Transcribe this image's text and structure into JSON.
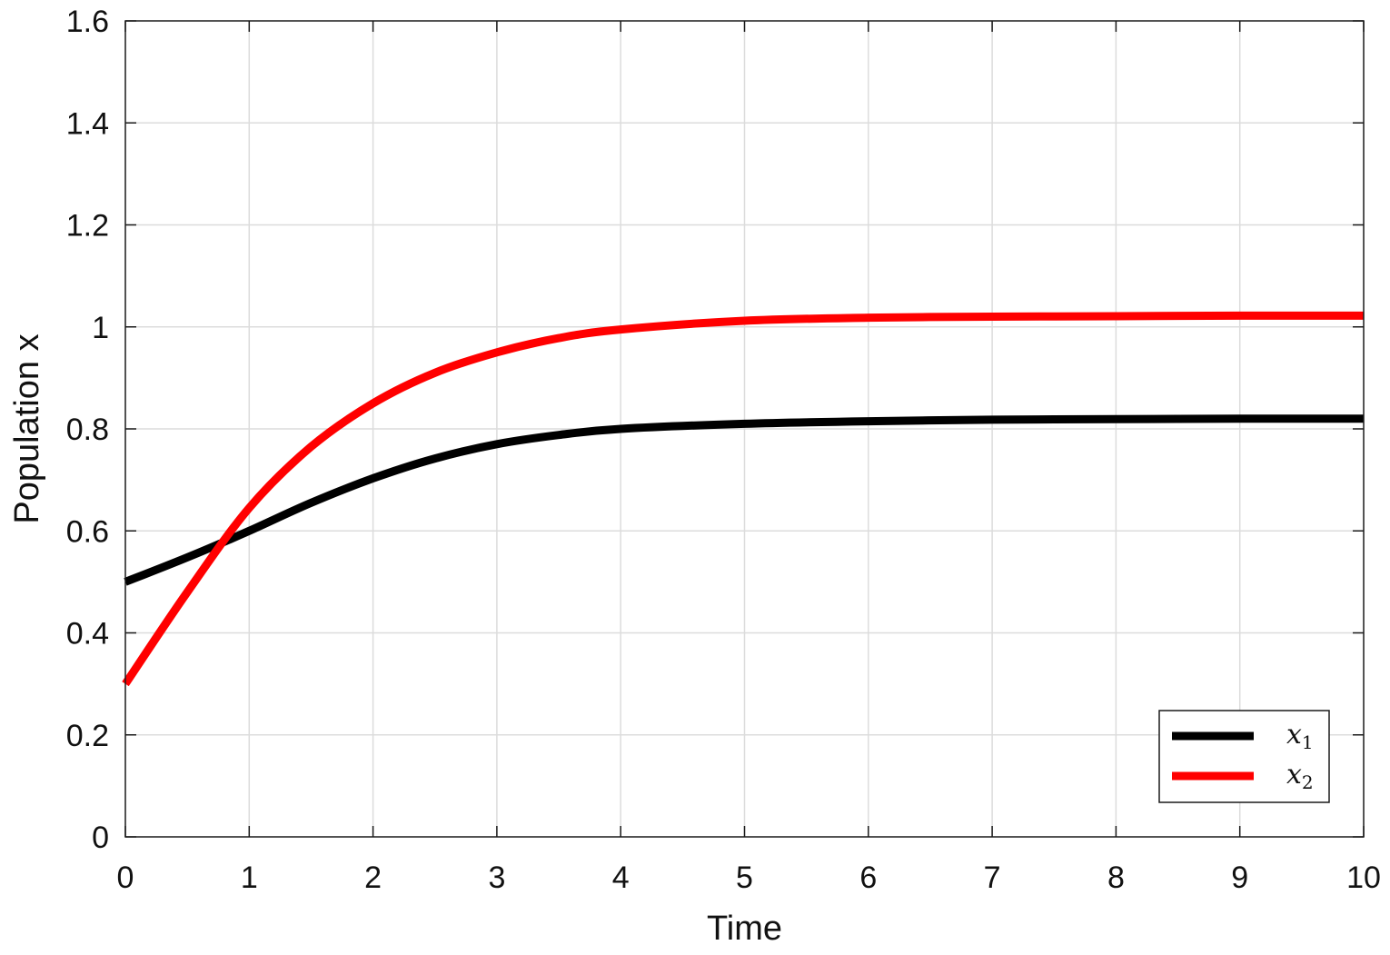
{
  "chart_data": {
    "type": "line",
    "xlabel": "Time",
    "ylabel": "Population x",
    "xlim": [
      0,
      10
    ],
    "ylim": [
      0,
      1.6
    ],
    "xticks": [
      "0",
      "1",
      "2",
      "3",
      "4",
      "5",
      "6",
      "7",
      "8",
      "9",
      "10"
    ],
    "yticks": [
      "0",
      "0.2",
      "0.4",
      "0.6",
      "0.8",
      "1",
      "1.2",
      "1.4",
      "1.6"
    ],
    "grid": true,
    "legend_position": "bottom-right",
    "x": [
      0,
      0.5,
      1,
      1.5,
      2,
      2.5,
      3,
      3.5,
      4,
      5,
      6,
      7,
      8,
      9,
      10
    ],
    "series": [
      {
        "name": "x",
        "subscript": "1",
        "color": "#000000",
        "values": [
          0.5,
          0.548,
          0.6,
          0.655,
          0.703,
          0.742,
          0.77,
          0.788,
          0.8,
          0.81,
          0.815,
          0.818,
          0.819,
          0.82,
          0.82
        ]
      },
      {
        "name": "x",
        "subscript": "2",
        "color": "#ff0000",
        "values": [
          0.3,
          0.48,
          0.645,
          0.765,
          0.85,
          0.91,
          0.95,
          0.978,
          0.995,
          1.012,
          1.018,
          1.02,
          1.021,
          1.022,
          1.022
        ]
      }
    ]
  }
}
